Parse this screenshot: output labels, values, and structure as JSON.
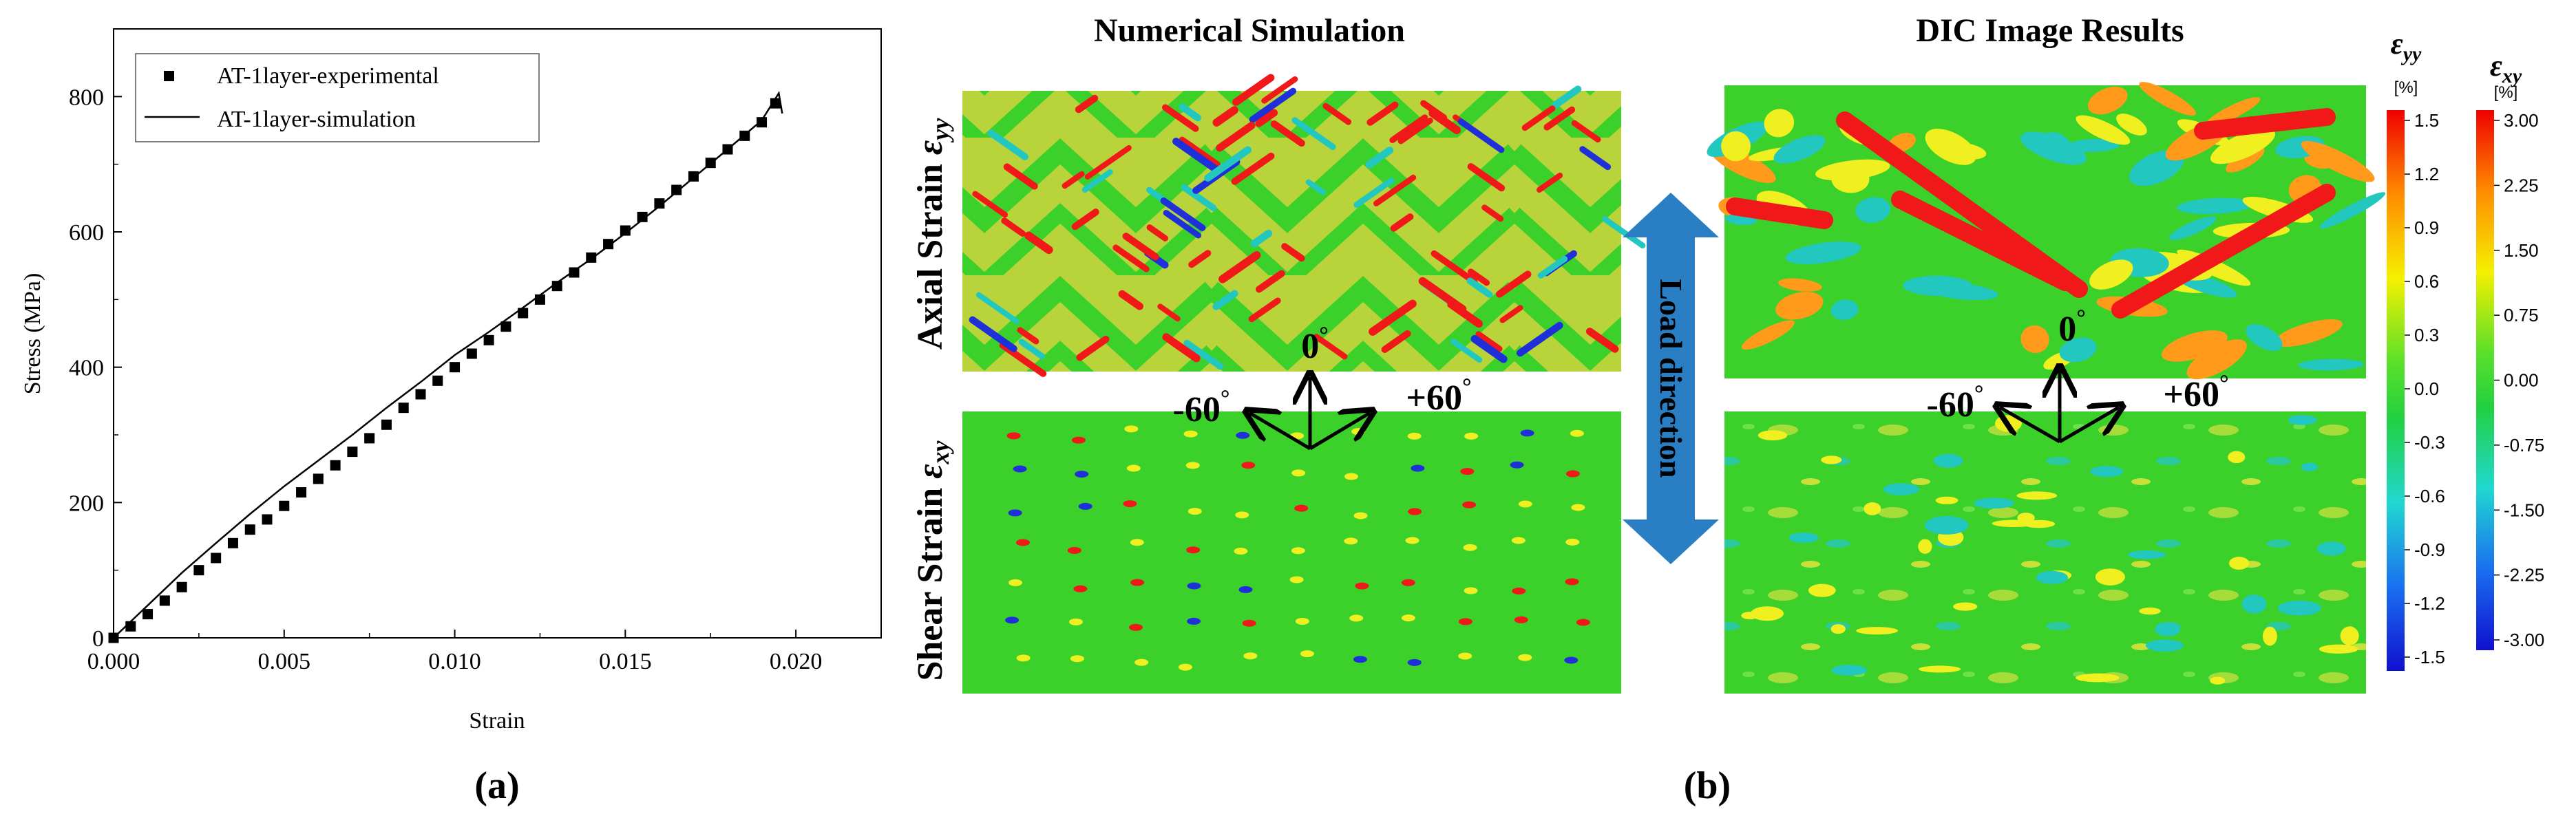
{
  "panel_a": {
    "label": "(a)",
    "chart_data": {
      "type": "scatter",
      "xlabel": "Strain",
      "ylabel": "Stress (MPa)",
      "xlim": [
        0.0,
        0.0225
      ],
      "ylim": [
        0,
        900
      ],
      "xticks": [
        "0.000",
        "0.005",
        "0.010",
        "0.015",
        "0.020"
      ],
      "xtick_values": [
        0.0,
        0.005,
        0.01,
        0.015,
        0.02
      ],
      "yticks": [
        "0",
        "200",
        "400",
        "600",
        "800"
      ],
      "ytick_values": [
        0,
        200,
        400,
        600,
        800
      ],
      "grid": false,
      "legend_position": "top-left",
      "series": [
        {
          "name": "AT-1layer-experimental",
          "marker": "square",
          "x": [
            0.0,
            0.0005,
            0.001,
            0.0015,
            0.002,
            0.0025,
            0.003,
            0.0035,
            0.004,
            0.0045,
            0.005,
            0.0055,
            0.006,
            0.0065,
            0.007,
            0.0075,
            0.008,
            0.0085,
            0.009,
            0.0095,
            0.01,
            0.0105,
            0.011,
            0.0115,
            0.012,
            0.0125,
            0.013,
            0.0135,
            0.014,
            0.0145,
            0.015,
            0.0155,
            0.016,
            0.0165,
            0.017,
            0.0175,
            0.018,
            0.0185,
            0.019,
            0.0194
          ],
          "y": [
            0,
            17,
            35,
            55,
            75,
            100,
            118,
            140,
            160,
            175,
            195,
            215,
            235,
            255,
            275,
            295,
            315,
            340,
            360,
            380,
            400,
            420,
            440,
            460,
            480,
            500,
            520,
            540,
            562,
            582,
            602,
            622,
            642,
            662,
            682,
            702,
            722,
            742,
            762,
            790
          ]
        },
        {
          "name": "AT-1layer-simulation",
          "marker": "line",
          "x": [
            0.0,
            0.001,
            0.002,
            0.003,
            0.004,
            0.005,
            0.006,
            0.007,
            0.008,
            0.009,
            0.01,
            0.011,
            0.012,
            0.013,
            0.014,
            0.015,
            0.016,
            0.017,
            0.018,
            0.019,
            0.0195,
            0.0196
          ],
          "y": [
            0,
            48,
            96,
            140,
            183,
            224,
            262,
            300,
            340,
            378,
            418,
            452,
            488,
            525,
            560,
            598,
            638,
            680,
            722,
            765,
            805,
            775
          ]
        }
      ]
    }
  },
  "panel_b": {
    "label": "(b)",
    "title_left": "Numerical Simulation",
    "title_right": "DIC Image Results",
    "row_label_top": "Axial Strain",
    "row_label_top_sym": "ε",
    "row_label_top_sub": "yy",
    "row_label_bottom": "Shear Strain",
    "row_label_bottom_sym": "ε",
    "row_label_bottom_sub": "xy",
    "load_direction": "Load direction",
    "angle_0": "0",
    "angle_minus60": "-60",
    "angle_plus60": "+60",
    "degree": "°",
    "colorbar_yy": {
      "symbol": "ε",
      "sub": "yy",
      "unit": "[%]",
      "ticks": [
        "1.5",
        "1.2",
        "0.9",
        "0.6",
        "0.3",
        "0.0",
        "-0.3",
        "-0.6",
        "-0.9",
        "-1.2",
        "-1.5"
      ]
    },
    "colorbar_xy": {
      "symbol": "ε",
      "sub": "xy",
      "unit": "[%]",
      "ticks": [
        "3.00",
        "2.25",
        "1.50",
        "0.75",
        "0.00",
        "-0.75",
        "-1.50",
        "-2.25",
        "-3.00"
      ]
    },
    "colors": {
      "green": "#3cd02a",
      "yellowgreen": "#b9d43a",
      "yellow": "#f0f020",
      "red": "#f01818",
      "cyan": "#22c8c0",
      "blue": "#2030d8",
      "arrow_blue": "#2a7fc4"
    }
  }
}
